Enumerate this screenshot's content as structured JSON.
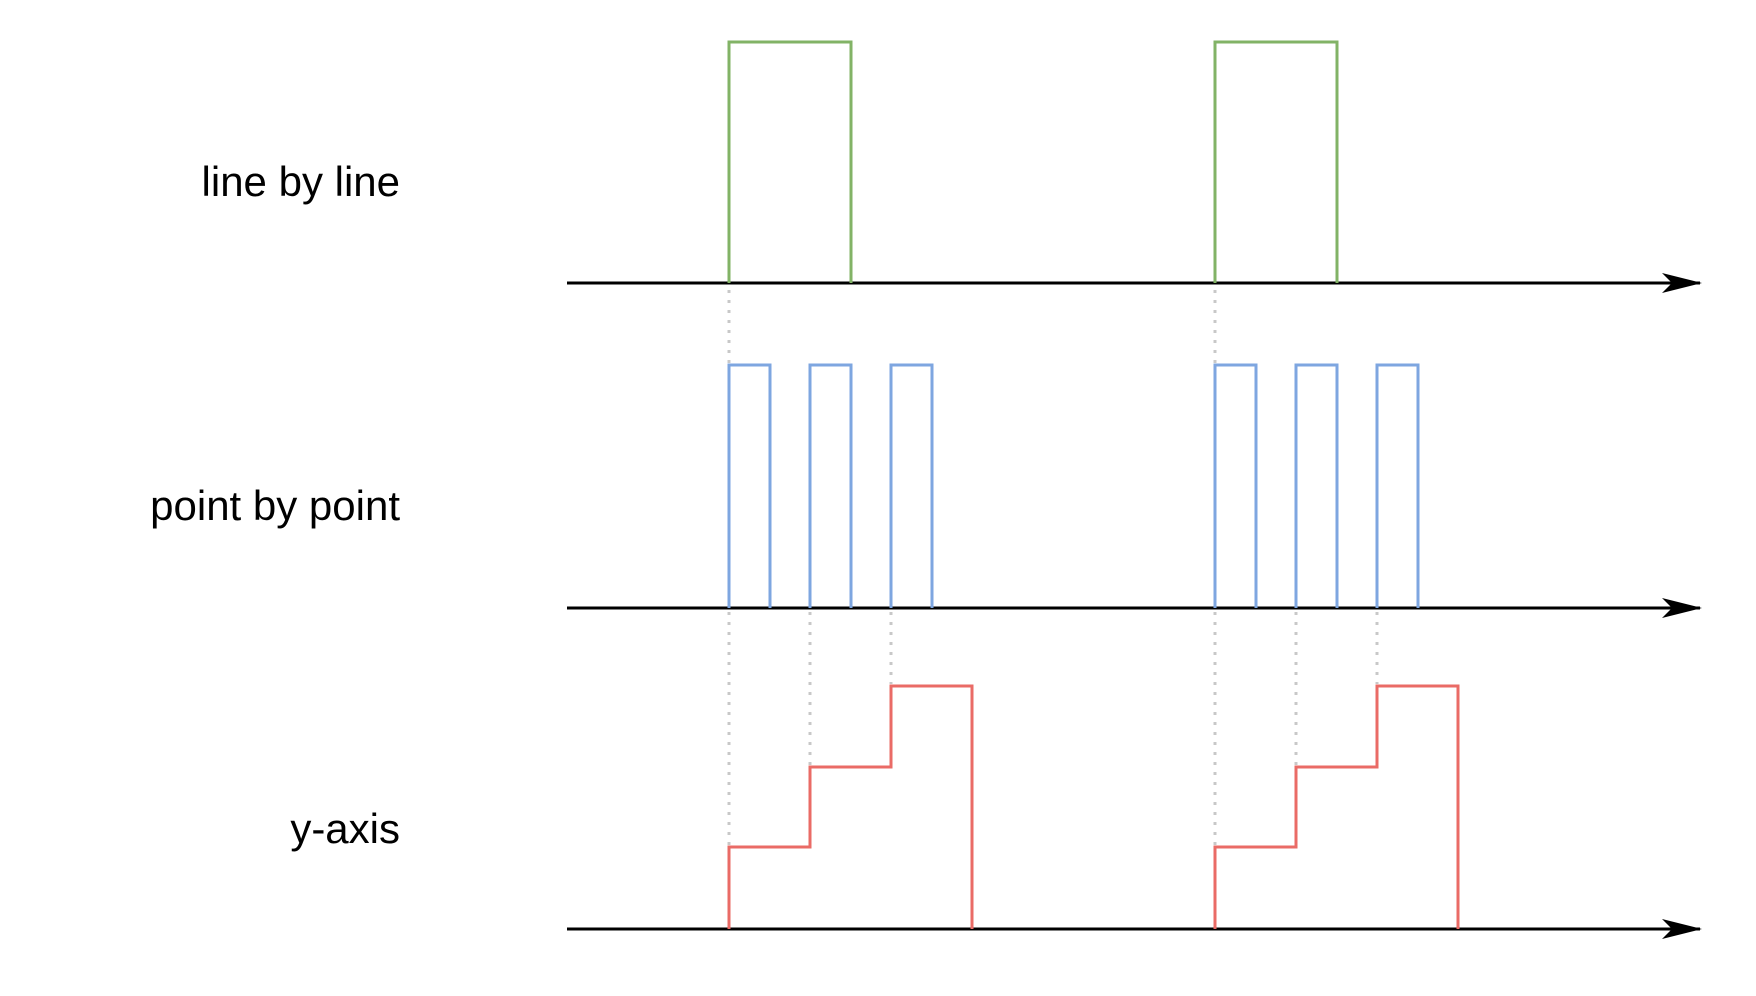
{
  "rows": [
    {
      "label": "line by line",
      "color": "#82b366"
    },
    {
      "label": "point by point",
      "color": "#7ea6e0"
    },
    {
      "label": "y-axis",
      "color": "#ea6b66"
    }
  ],
  "colors": {
    "axis": "#000000",
    "guide": "#c8c8c8"
  }
}
